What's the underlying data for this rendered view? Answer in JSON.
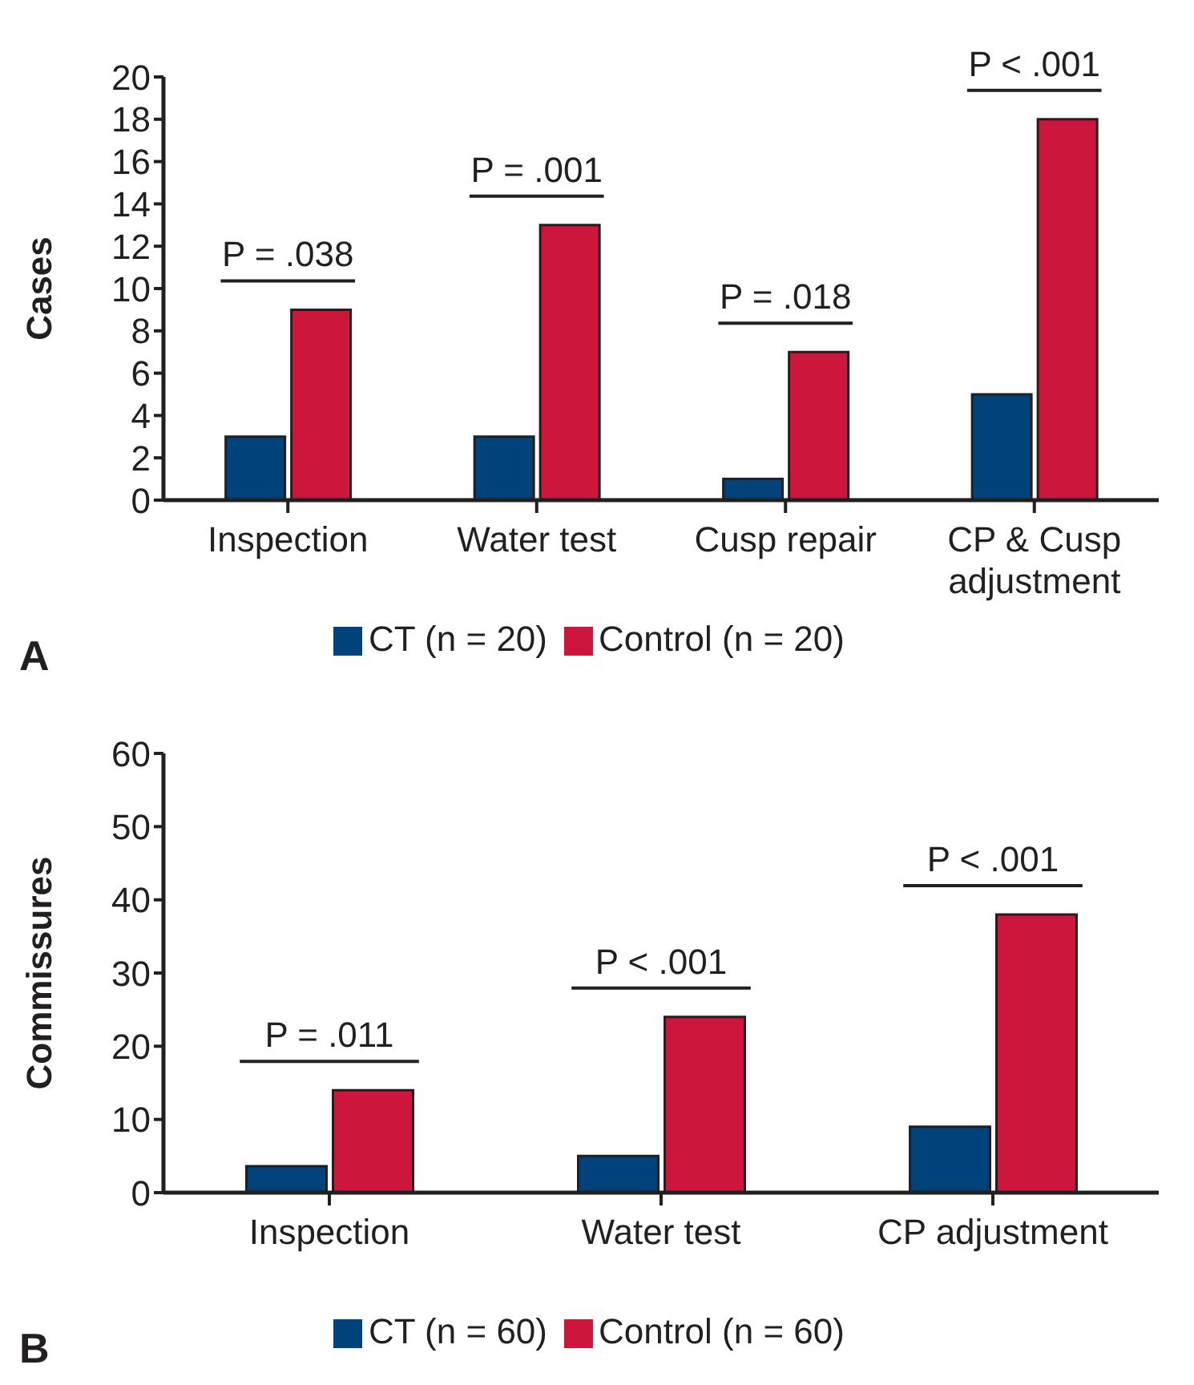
{
  "chart_data": [
    {
      "type": "bar",
      "categories": [
        "Inspection",
        "Water test",
        "Cusp repair",
        "CP & Cusp adjustment"
      ],
      "ylabel": "Cases",
      "ylim": [
        0,
        20
      ],
      "yticks": [
        0,
        2,
        4,
        6,
        8,
        10,
        12,
        14,
        16,
        18,
        20
      ],
      "legend": "bottom",
      "series": [
        {
          "name": "CT (n = 20)",
          "color": "#00427a",
          "values": [
            3,
            3,
            1,
            5
          ]
        },
        {
          "name": "Control (n = 20)",
          "color": "#cc163c",
          "values": [
            9,
            13,
            7,
            18
          ]
        }
      ],
      "annotations": [
        "P = .038",
        "P = .001",
        "P = .018",
        "P < .001",
        "A"
      ]
    },
    {
      "type": "bar",
      "categories": [
        "Inspection",
        "Water test",
        "CP adjustment"
      ],
      "ylabel": "Commissures",
      "ylim": [
        0,
        60
      ],
      "yticks": [
        0,
        10,
        20,
        30,
        40,
        50,
        60
      ],
      "legend": "bottom",
      "series": [
        {
          "name": "CT (n = 60)",
          "color": "#00427a",
          "values": [
            3.6,
            5,
            9
          ]
        },
        {
          "name": "Control (n = 60)",
          "color": "#cc163c",
          "values": [
            14,
            24,
            38
          ]
        }
      ],
      "annotations": [
        "P = .011",
        "P < .001",
        "P < .001",
        "B"
      ]
    }
  ]
}
